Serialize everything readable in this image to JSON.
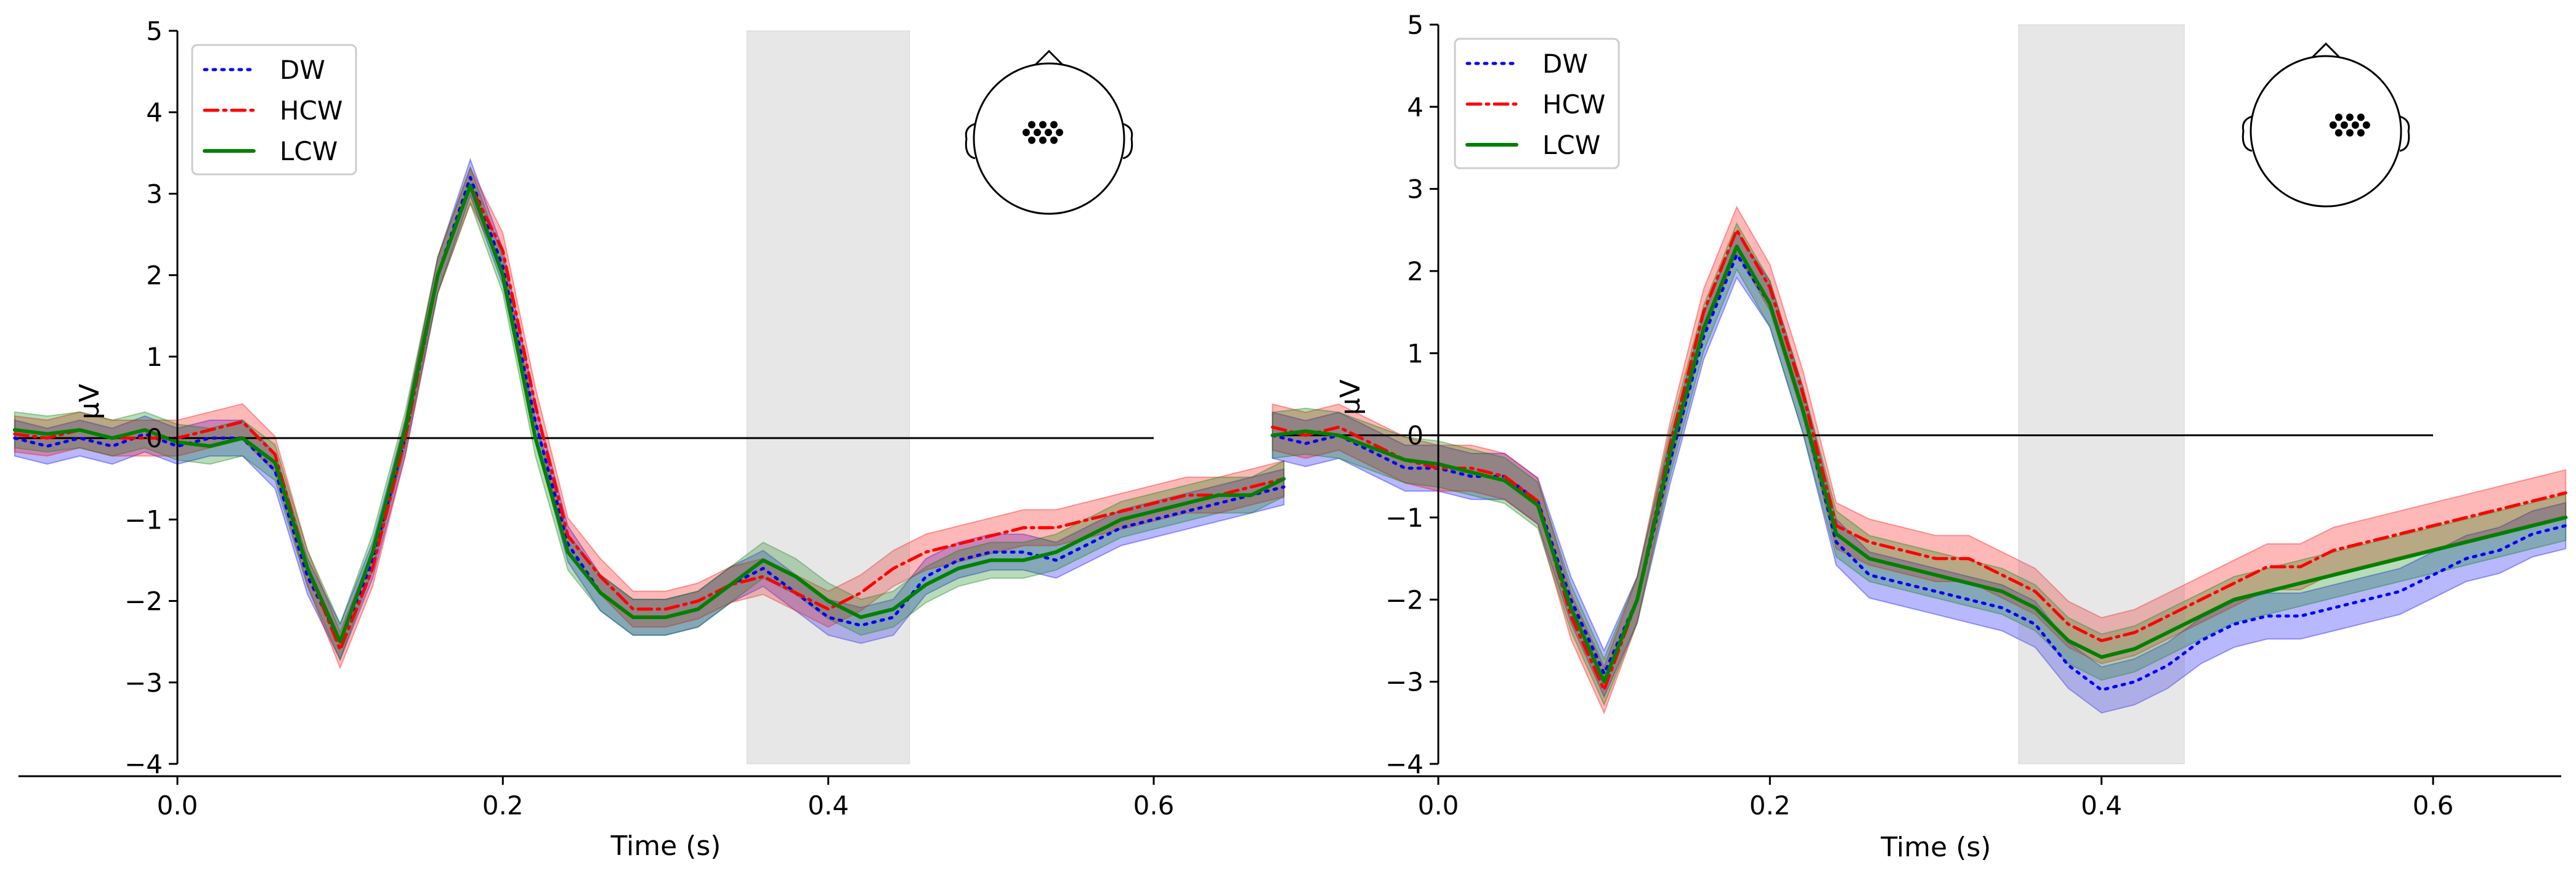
{
  "chart_data": [
    {
      "type": "line",
      "panel": "left",
      "xlabel": "Time (s)",
      "ylabel": "µV",
      "xlim": [
        -0.1,
        0.68
      ],
      "ylim": [
        -4,
        5
      ],
      "xticks": [
        0.0,
        0.2,
        0.4,
        0.6
      ],
      "xtick_labels": [
        "0.0",
        "0.2",
        "0.4",
        "0.6"
      ],
      "yticks": [
        -4,
        -3,
        -2,
        -1,
        0,
        1,
        2,
        3,
        4,
        5
      ],
      "ytick_labels": [
        "−4",
        "−3",
        "−2",
        "−1",
        "0",
        "1",
        "2",
        "3",
        "4",
        "5"
      ],
      "zero_line": {
        "x_range": [
          -0.1,
          0.6
        ],
        "y": 0
      },
      "shaded_window": {
        "x_range": [
          0.35,
          0.45
        ]
      },
      "legend": {
        "position": "top-left",
        "entries": [
          "DW",
          "HCW",
          "LCW"
        ]
      },
      "head_sensor_location": "central",
      "x": [
        -0.1,
        -0.08,
        -0.06,
        -0.04,
        -0.02,
        0.0,
        0.02,
        0.04,
        0.06,
        0.08,
        0.1,
        0.12,
        0.14,
        0.16,
        0.18,
        0.2,
        0.22,
        0.24,
        0.26,
        0.28,
        0.3,
        0.32,
        0.34,
        0.36,
        0.38,
        0.4,
        0.42,
        0.44,
        0.46,
        0.48,
        0.5,
        0.52,
        0.54,
        0.56,
        0.58,
        0.6,
        0.62,
        0.64,
        0.66,
        0.68
      ],
      "series": [
        {
          "name": "DW",
          "color": "#0000ff",
          "style": "dotted",
          "band": 0.22,
          "values": [
            0.0,
            -0.1,
            0.0,
            -0.1,
            0.05,
            -0.1,
            0.0,
            0.0,
            -0.4,
            -1.7,
            -2.5,
            -1.5,
            0.0,
            2.0,
            3.2,
            2.1,
            0.2,
            -1.3,
            -1.9,
            -2.2,
            -2.2,
            -2.1,
            -1.8,
            -1.6,
            -1.9,
            -2.2,
            -2.3,
            -2.2,
            -1.7,
            -1.5,
            -1.4,
            -1.4,
            -1.5,
            -1.3,
            -1.1,
            -1.0,
            -0.9,
            -0.8,
            -0.7,
            -0.6
          ]
        },
        {
          "name": "HCW",
          "color": "#ff0000",
          "style": "dashdot",
          "band": 0.22,
          "values": [
            0.05,
            0.0,
            0.1,
            0.0,
            0.0,
            0.0,
            0.1,
            0.2,
            -0.2,
            -1.6,
            -2.6,
            -1.6,
            0.0,
            2.0,
            3.1,
            2.3,
            0.4,
            -1.2,
            -1.7,
            -2.1,
            -2.1,
            -2.0,
            -1.8,
            -1.7,
            -1.9,
            -2.1,
            -1.9,
            -1.6,
            -1.4,
            -1.3,
            -1.2,
            -1.1,
            -1.1,
            -1.0,
            -0.9,
            -0.8,
            -0.7,
            -0.7,
            -0.6,
            -0.5
          ]
        },
        {
          "name": "LCW",
          "color": "#008000",
          "style": "solid",
          "band": 0.22,
          "values": [
            0.1,
            0.05,
            0.1,
            0.0,
            0.1,
            -0.05,
            -0.1,
            0.0,
            -0.3,
            -1.6,
            -2.5,
            -1.4,
            0.1,
            2.0,
            3.1,
            2.0,
            0.0,
            -1.4,
            -1.9,
            -2.2,
            -2.2,
            -2.1,
            -1.8,
            -1.5,
            -1.7,
            -2.0,
            -2.2,
            -2.1,
            -1.8,
            -1.6,
            -1.5,
            -1.5,
            -1.4,
            -1.2,
            -1.0,
            -0.9,
            -0.8,
            -0.7,
            -0.7,
            -0.5
          ]
        }
      ]
    },
    {
      "type": "line",
      "panel": "right",
      "xlabel": "Time (s)",
      "ylabel": "µV",
      "xlim": [
        -0.13,
        0.68
      ],
      "ylim": [
        -4,
        5
      ],
      "xticks": [
        0.0,
        0.2,
        0.4,
        0.6
      ],
      "xtick_labels": [
        "0.0",
        "0.2",
        "0.4",
        "0.6"
      ],
      "yticks": [
        -4,
        -3,
        -2,
        -1,
        0,
        1,
        2,
        3,
        4,
        5
      ],
      "ytick_labels": [
        "−4",
        "−3",
        "−2",
        "−1",
        "0",
        "1",
        "2",
        "3",
        "4",
        "5"
      ],
      "zero_line": {
        "x_range": [
          -0.1,
          0.6
        ],
        "y": 0
      },
      "shaded_window": {
        "x_range": [
          0.35,
          0.45
        ]
      },
      "legend": {
        "position": "top-left",
        "entries": [
          "DW",
          "HCW",
          "LCW"
        ]
      },
      "head_sensor_location": "right-central",
      "x": [
        -0.1,
        -0.08,
        -0.06,
        -0.04,
        -0.02,
        0.0,
        0.02,
        0.04,
        0.06,
        0.08,
        0.1,
        0.12,
        0.14,
        0.16,
        0.18,
        0.2,
        0.22,
        0.24,
        0.26,
        0.28,
        0.3,
        0.32,
        0.34,
        0.36,
        0.38,
        0.4,
        0.42,
        0.44,
        0.46,
        0.48,
        0.5,
        0.52,
        0.54,
        0.56,
        0.58,
        0.6,
        0.62,
        0.64,
        0.66,
        0.68
      ],
      "series": [
        {
          "name": "DW",
          "color": "#0000ff",
          "style": "dotted",
          "band": 0.28,
          "values": [
            0.0,
            -0.1,
            0.0,
            -0.2,
            -0.4,
            -0.4,
            -0.5,
            -0.5,
            -0.8,
            -2.0,
            -2.9,
            -2.0,
            -0.3,
            1.2,
            2.2,
            1.6,
            0.3,
            -1.3,
            -1.7,
            -1.8,
            -1.9,
            -2.0,
            -2.1,
            -2.3,
            -2.8,
            -3.1,
            -3.0,
            -2.8,
            -2.5,
            -2.3,
            -2.2,
            -2.2,
            -2.1,
            -2.0,
            -1.9,
            -1.7,
            -1.5,
            -1.4,
            -1.2,
            -1.1
          ]
        },
        {
          "name": "HCW",
          "color": "#ff0000",
          "style": "dashdot",
          "band": 0.28,
          "values": [
            0.1,
            0.0,
            0.1,
            -0.1,
            -0.3,
            -0.4,
            -0.4,
            -0.5,
            -0.8,
            -2.2,
            -3.1,
            -2.0,
            -0.1,
            1.5,
            2.5,
            1.8,
            0.5,
            -1.1,
            -1.3,
            -1.4,
            -1.5,
            -1.5,
            -1.7,
            -1.9,
            -2.3,
            -2.5,
            -2.4,
            -2.2,
            -2.0,
            -1.8,
            -1.6,
            -1.6,
            -1.4,
            -1.3,
            -1.2,
            -1.1,
            -1.0,
            -0.9,
            -0.8,
            -0.7
          ]
        },
        {
          "name": "LCW",
          "color": "#008000",
          "style": "solid",
          "band": 0.28,
          "values": [
            0.0,
            0.05,
            0.0,
            -0.15,
            -0.3,
            -0.35,
            -0.45,
            -0.55,
            -0.85,
            -2.1,
            -3.0,
            -2.0,
            -0.2,
            1.3,
            2.3,
            1.6,
            0.3,
            -1.2,
            -1.5,
            -1.6,
            -1.7,
            -1.8,
            -1.9,
            -2.1,
            -2.5,
            -2.7,
            -2.6,
            -2.4,
            -2.2,
            -2.0,
            -1.9,
            -1.8,
            -1.7,
            -1.6,
            -1.5,
            -1.4,
            -1.3,
            -1.2,
            -1.1,
            -1.0
          ]
        }
      ]
    }
  ]
}
